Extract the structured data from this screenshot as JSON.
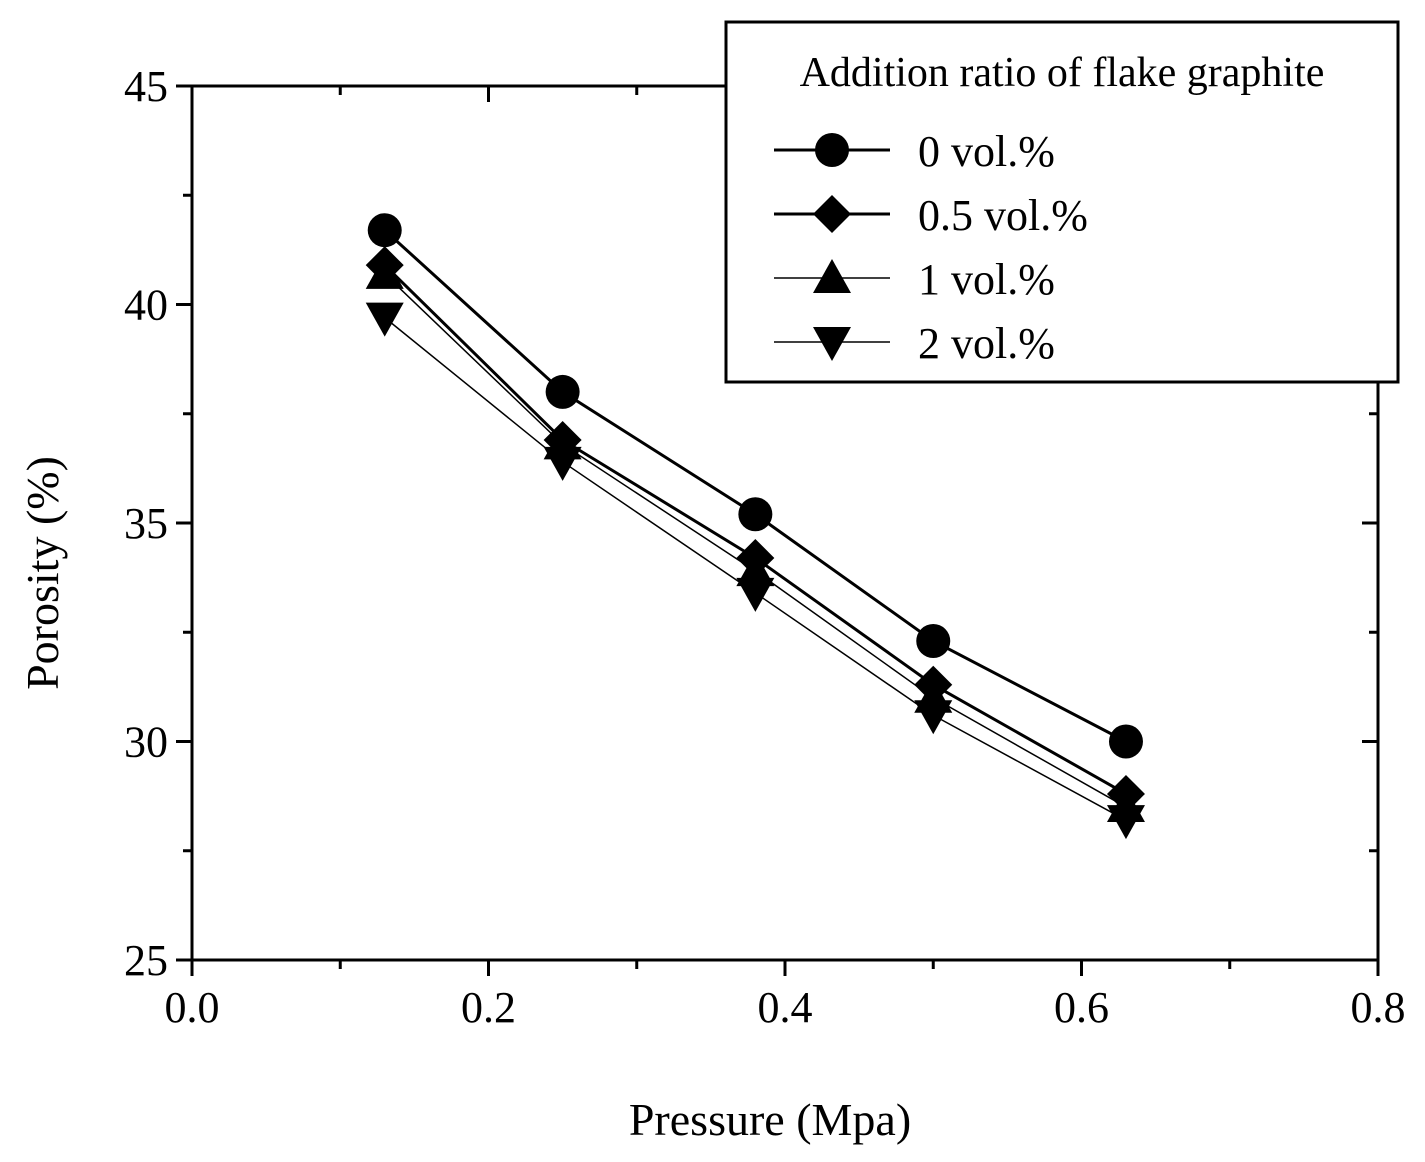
{
  "chart_data": {
    "type": "line",
    "xlabel": "Pressure (Mpa)",
    "ylabel": "Porosity (%)",
    "xlim": [
      0.0,
      0.8
    ],
    "ylim": [
      25,
      45
    ],
    "x_ticks": [
      "0.0",
      "0.2",
      "0.4",
      "0.6",
      "0.8"
    ],
    "y_ticks": [
      "25",
      "30",
      "35",
      "40",
      "45"
    ],
    "grid": false,
    "legend": {
      "title": "Addition ratio of flake graphite",
      "placement": "top-right"
    },
    "x": [
      0.13,
      0.25,
      0.38,
      0.5,
      0.63
    ],
    "series": [
      {
        "name": "0 vol.%",
        "marker": "circle",
        "values": [
          41.7,
          38.0,
          35.2,
          32.3,
          30.0
        ]
      },
      {
        "name": "0.5 vol.%",
        "marker": "diamond",
        "values": [
          40.9,
          36.9,
          34.2,
          31.3,
          28.8
        ]
      },
      {
        "name": "1 vol.%",
        "marker": "triangle-up",
        "values": [
          40.7,
          36.8,
          33.9,
          31.0,
          28.5
        ]
      },
      {
        "name": "2 vol.%",
        "marker": "triangle-down",
        "values": [
          39.7,
          36.4,
          33.4,
          30.6,
          28.2
        ]
      }
    ],
    "colors": {
      "line": "#000000",
      "marker": "#000000",
      "background": "#ffffff"
    }
  }
}
